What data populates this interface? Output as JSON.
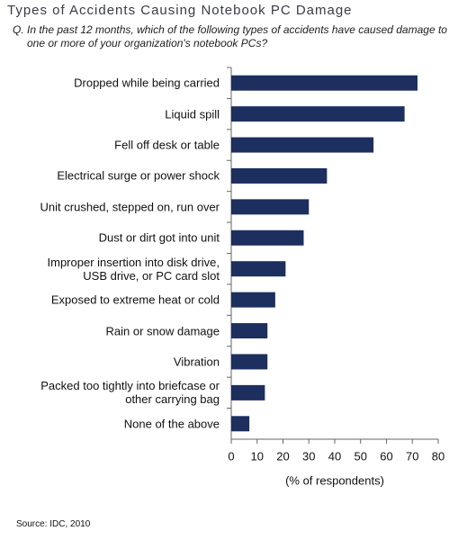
{
  "chart_data": {
    "type": "bar",
    "orientation": "horizontal",
    "title": "Types of Accidents Causing Notebook PC Damage",
    "subtitle": "Q. In the past 12 months, which of the following types of accidents have caused damage to one or more of your organization's notebook PCs?",
    "categories": [
      "Dropped while being carried",
      "Liquid spill",
      "Fell off desk or table",
      "Electrical surge or power shock",
      "Unit crushed, stepped on, run over",
      "Dust or dirt got into unit",
      "Improper insertion into disk drive,\nUSB drive, or PC card slot",
      "Exposed to extreme heat or cold",
      "Rain or snow damage",
      "Vibration",
      "Packed too tightly into briefcase or\nother carrying bag",
      "None of the above"
    ],
    "values": [
      72,
      67,
      55,
      37,
      30,
      28,
      21,
      17,
      14,
      14,
      13,
      7
    ],
    "color": "#1c2f5e",
    "xlim": [
      0,
      80
    ],
    "xticks": [
      0,
      10,
      20,
      30,
      40,
      50,
      60,
      70,
      80
    ],
    "xlabel": "(% of respondents)",
    "source": "Source: IDC, 2010"
  }
}
